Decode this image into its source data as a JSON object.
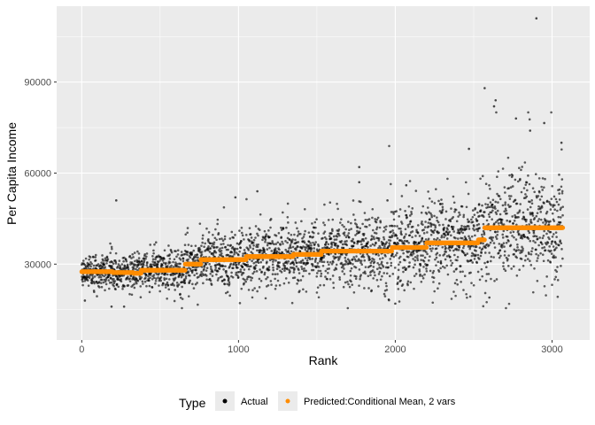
{
  "chart_data": {
    "type": "scatter",
    "xlabel": "Rank",
    "ylabel": "Per Capita Income",
    "xlim": [
      -160,
      3240
    ],
    "ylim": [
      5000,
      115000
    ],
    "x_ticks": [
      0,
      1000,
      2000,
      3000
    ],
    "x_tick_labels": [
      "0",
      "1000",
      "2000",
      "3000"
    ],
    "y_ticks": [
      30000,
      60000,
      90000
    ],
    "y_tick_labels": [
      "30000",
      "60000",
      "90000"
    ],
    "grid": true,
    "legend_position": "bottom",
    "legend": {
      "title": "Type",
      "entries": [
        {
          "label": "Actual",
          "color": "#000000"
        },
        {
          "label": "Predicted:Conditional Mean, 2 vars",
          "color": "#FF8C00"
        }
      ]
    },
    "series": [
      {
        "name": "Actual",
        "color": "#000000",
        "n_points": 3070,
        "notable_points": [
          {
            "x": 2900,
            "y": 111000
          },
          {
            "x": 2570,
            "y": 88000
          },
          {
            "x": 2640,
            "y": 84000
          },
          {
            "x": 2630,
            "y": 82000
          },
          {
            "x": 2950,
            "y": 76500
          },
          {
            "x": 2860,
            "y": 74000
          },
          {
            "x": 2770,
            "y": 78000
          },
          {
            "x": 3060,
            "y": 70000
          },
          {
            "x": 2470,
            "y": 68000
          },
          {
            "x": 1770,
            "y": 62000
          },
          {
            "x": 1770,
            "y": 57000
          },
          {
            "x": 2070,
            "y": 56000
          },
          {
            "x": 220,
            "y": 51000
          },
          {
            "x": 1950,
            "y": 51000
          },
          {
            "x": 980,
            "y": 52000
          },
          {
            "x": 1120,
            "y": 54000
          },
          {
            "x": 2000,
            "y": 17000
          },
          {
            "x": 190,
            "y": 16000
          },
          {
            "x": 270,
            "y": 16000
          },
          {
            "x": 2600,
            "y": 19000
          },
          {
            "x": 20,
            "y": 18000
          }
        ]
      },
      {
        "name": "Predicted:Conditional Mean, 2 vars",
        "color": "#FF8C00",
        "steps": [
          {
            "x_start": 0,
            "x_end": 200,
            "y": 27500
          },
          {
            "x_start": 200,
            "x_end": 330,
            "y": 27200
          },
          {
            "x_start": 330,
            "x_end": 380,
            "y": 27000
          },
          {
            "x_start": 380,
            "x_end": 660,
            "y": 28000
          },
          {
            "x_start": 660,
            "x_end": 760,
            "y": 30000
          },
          {
            "x_start": 760,
            "x_end": 1050,
            "y": 31500
          },
          {
            "x_start": 1050,
            "x_end": 1350,
            "y": 32500
          },
          {
            "x_start": 1350,
            "x_end": 1530,
            "y": 33200
          },
          {
            "x_start": 1530,
            "x_end": 1980,
            "y": 34300
          },
          {
            "x_start": 1980,
            "x_end": 2200,
            "y": 35500
          },
          {
            "x_start": 2200,
            "x_end": 2530,
            "y": 37000
          },
          {
            "x_start": 2530,
            "x_end": 2570,
            "y": 38000
          },
          {
            "x_start": 2570,
            "x_end": 3070,
            "y": 42000
          }
        ]
      }
    ]
  }
}
